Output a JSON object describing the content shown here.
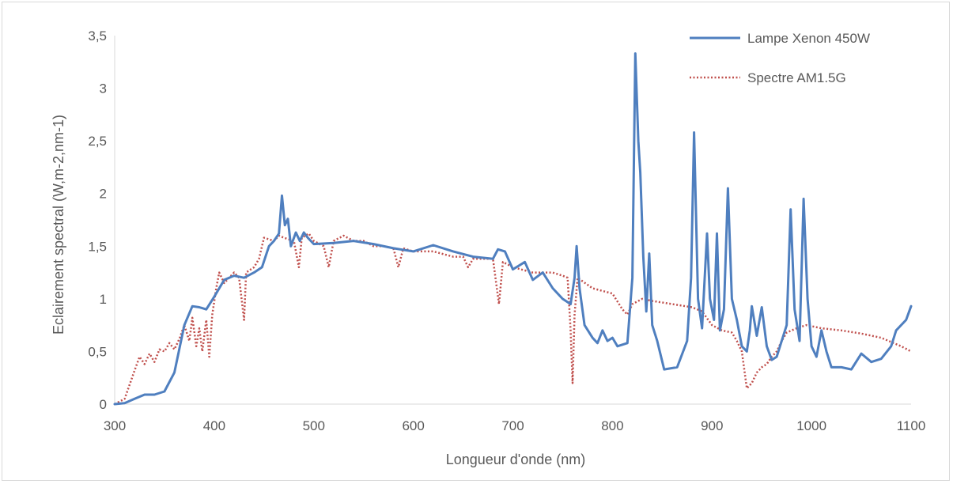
{
  "chart_data": {
    "type": "line",
    "title": "",
    "xlabel": "Longueur d'onde (nm)",
    "ylabel": "Eclairement spectral (W,m-2,nm-1)",
    "xlim": [
      300,
      1100
    ],
    "ylim": [
      0,
      3.5
    ],
    "x_ticks": [
      "300",
      "400",
      "500",
      "600",
      "700",
      "800",
      "900",
      "1000",
      "1100"
    ],
    "y_ticks": [
      "0",
      "0,5",
      "1",
      "1,5",
      "2",
      "2,5",
      "3",
      "3,5"
    ],
    "grid": false,
    "legend_position": "top-right",
    "series": [
      {
        "name": "Lampe Xenon 450W",
        "color": "#4f7fbf",
        "style": "solid",
        "points": [
          [
            300,
            0
          ],
          [
            310,
            0.01
          ],
          [
            320,
            0.05
          ],
          [
            330,
            0.09
          ],
          [
            340,
            0.09
          ],
          [
            350,
            0.12
          ],
          [
            360,
            0.3
          ],
          [
            370,
            0.75
          ],
          [
            378,
            0.93
          ],
          [
            385,
            0.92
          ],
          [
            392,
            0.9
          ],
          [
            400,
            1.02
          ],
          [
            410,
            1.18
          ],
          [
            420,
            1.22
          ],
          [
            430,
            1.2
          ],
          [
            440,
            1.25
          ],
          [
            448,
            1.3
          ],
          [
            455,
            1.5
          ],
          [
            460,
            1.55
          ],
          [
            465,
            1.62
          ],
          [
            468,
            1.98
          ],
          [
            471,
            1.7
          ],
          [
            474,
            1.76
          ],
          [
            477,
            1.5
          ],
          [
            482,
            1.63
          ],
          [
            486,
            1.55
          ],
          [
            490,
            1.63
          ],
          [
            494,
            1.58
          ],
          [
            500,
            1.52
          ],
          [
            520,
            1.53
          ],
          [
            540,
            1.55
          ],
          [
            560,
            1.52
          ],
          [
            580,
            1.48
          ],
          [
            600,
            1.45
          ],
          [
            620,
            1.51
          ],
          [
            640,
            1.45
          ],
          [
            660,
            1.4
          ],
          [
            680,
            1.38
          ],
          [
            685,
            1.47
          ],
          [
            692,
            1.45
          ],
          [
            700,
            1.28
          ],
          [
            712,
            1.35
          ],
          [
            720,
            1.18
          ],
          [
            730,
            1.25
          ],
          [
            740,
            1.1
          ],
          [
            750,
            1.0
          ],
          [
            758,
            0.95
          ],
          [
            762,
            1.2
          ],
          [
            764,
            1.5
          ],
          [
            767,
            1.1
          ],
          [
            772,
            0.75
          ],
          [
            780,
            0.63
          ],
          [
            785,
            0.58
          ],
          [
            790,
            0.7
          ],
          [
            795,
            0.6
          ],
          [
            800,
            0.63
          ],
          [
            805,
            0.55
          ],
          [
            815,
            0.58
          ],
          [
            820,
            1.2
          ],
          [
            823,
            3.33
          ],
          [
            826,
            2.5
          ],
          [
            828,
            2.2
          ],
          [
            831,
            1.4
          ],
          [
            834,
            0.88
          ],
          [
            837,
            1.43
          ],
          [
            840,
            0.75
          ],
          [
            845,
            0.6
          ],
          [
            852,
            0.33
          ],
          [
            865,
            0.35
          ],
          [
            875,
            0.6
          ],
          [
            879,
            1.2
          ],
          [
            882,
            2.58
          ],
          [
            886,
            1.0
          ],
          [
            890,
            0.72
          ],
          [
            895,
            1.62
          ],
          [
            898,
            1.0
          ],
          [
            902,
            0.8
          ],
          [
            905,
            1.62
          ],
          [
            908,
            0.7
          ],
          [
            912,
            0.9
          ],
          [
            916,
            2.05
          ],
          [
            920,
            1.0
          ],
          [
            925,
            0.8
          ],
          [
            930,
            0.55
          ],
          [
            935,
            0.5
          ],
          [
            938,
            0.7
          ],
          [
            940,
            0.93
          ],
          [
            945,
            0.65
          ],
          [
            950,
            0.92
          ],
          [
            955,
            0.55
          ],
          [
            960,
            0.42
          ],
          [
            965,
            0.45
          ],
          [
            970,
            0.6
          ],
          [
            975,
            0.75
          ],
          [
            979,
            1.85
          ],
          [
            983,
            0.9
          ],
          [
            988,
            0.6
          ],
          [
            992,
            1.95
          ],
          [
            996,
            1.0
          ],
          [
            1000,
            0.55
          ],
          [
            1005,
            0.45
          ],
          [
            1010,
            0.7
          ],
          [
            1015,
            0.5
          ],
          [
            1020,
            0.35
          ],
          [
            1030,
            0.35
          ],
          [
            1040,
            0.33
          ],
          [
            1050,
            0.48
          ],
          [
            1060,
            0.4
          ],
          [
            1070,
            0.43
          ],
          [
            1080,
            0.55
          ],
          [
            1085,
            0.7
          ],
          [
            1090,
            0.75
          ],
          [
            1095,
            0.8
          ],
          [
            1100,
            0.93
          ]
        ]
      },
      {
        "name": "Spectre AM1.5G",
        "color": "#c0504d",
        "style": "dotted",
        "points": [
          [
            300,
            0
          ],
          [
            310,
            0.05
          ],
          [
            320,
            0.32
          ],
          [
            325,
            0.45
          ],
          [
            330,
            0.38
          ],
          [
            335,
            0.48
          ],
          [
            340,
            0.4
          ],
          [
            345,
            0.52
          ],
          [
            350,
            0.5
          ],
          [
            355,
            0.58
          ],
          [
            360,
            0.52
          ],
          [
            365,
            0.62
          ],
          [
            370,
            0.75
          ],
          [
            375,
            0.6
          ],
          [
            378,
            0.82
          ],
          [
            382,
            0.55
          ],
          [
            385,
            0.72
          ],
          [
            388,
            0.5
          ],
          [
            392,
            0.8
          ],
          [
            395,
            0.45
          ],
          [
            398,
            0.85
          ],
          [
            402,
            1.1
          ],
          [
            405,
            1.25
          ],
          [
            410,
            1.15
          ],
          [
            415,
            1.2
          ],
          [
            420,
            1.25
          ],
          [
            425,
            1.2
          ],
          [
            430,
            0.8
          ],
          [
            432,
            1.25
          ],
          [
            440,
            1.3
          ],
          [
            445,
            1.38
          ],
          [
            450,
            1.58
          ],
          [
            460,
            1.55
          ],
          [
            465,
            1.6
          ],
          [
            470,
            1.58
          ],
          [
            480,
            1.55
          ],
          [
            485,
            1.3
          ],
          [
            488,
            1.58
          ],
          [
            495,
            1.62
          ],
          [
            500,
            1.55
          ],
          [
            510,
            1.5
          ],
          [
            515,
            1.3
          ],
          [
            520,
            1.55
          ],
          [
            530,
            1.6
          ],
          [
            540,
            1.55
          ],
          [
            550,
            1.55
          ],
          [
            560,
            1.5
          ],
          [
            570,
            1.5
          ],
          [
            580,
            1.48
          ],
          [
            585,
            1.3
          ],
          [
            590,
            1.48
          ],
          [
            600,
            1.45
          ],
          [
            620,
            1.45
          ],
          [
            640,
            1.4
          ],
          [
            650,
            1.4
          ],
          [
            655,
            1.3
          ],
          [
            660,
            1.38
          ],
          [
            680,
            1.38
          ],
          [
            686,
            0.95
          ],
          [
            690,
            1.35
          ],
          [
            700,
            1.3
          ],
          [
            720,
            1.25
          ],
          [
            740,
            1.25
          ],
          [
            750,
            1.22
          ],
          [
            755,
            1.2
          ],
          [
            758,
            0.7
          ],
          [
            760,
            0.2
          ],
          [
            762,
            0.85
          ],
          [
            765,
            1.2
          ],
          [
            780,
            1.1
          ],
          [
            800,
            1.05
          ],
          [
            810,
            0.9
          ],
          [
            815,
            0.85
          ],
          [
            820,
            0.95
          ],
          [
            830,
            1.0
          ],
          [
            840,
            0.98
          ],
          [
            860,
            0.95
          ],
          [
            880,
            0.92
          ],
          [
            890,
            0.88
          ],
          [
            900,
            0.75
          ],
          [
            910,
            0.7
          ],
          [
            920,
            0.68
          ],
          [
            925,
            0.6
          ],
          [
            930,
            0.5
          ],
          [
            935,
            0.15
          ],
          [
            940,
            0.2
          ],
          [
            945,
            0.3
          ],
          [
            950,
            0.35
          ],
          [
            955,
            0.38
          ],
          [
            960,
            0.45
          ],
          [
            965,
            0.5
          ],
          [
            970,
            0.6
          ],
          [
            975,
            0.68
          ],
          [
            985,
            0.72
          ],
          [
            995,
            0.75
          ],
          [
            1010,
            0.72
          ],
          [
            1030,
            0.7
          ],
          [
            1050,
            0.67
          ],
          [
            1070,
            0.63
          ],
          [
            1090,
            0.55
          ],
          [
            1100,
            0.5
          ]
        ]
      }
    ]
  }
}
